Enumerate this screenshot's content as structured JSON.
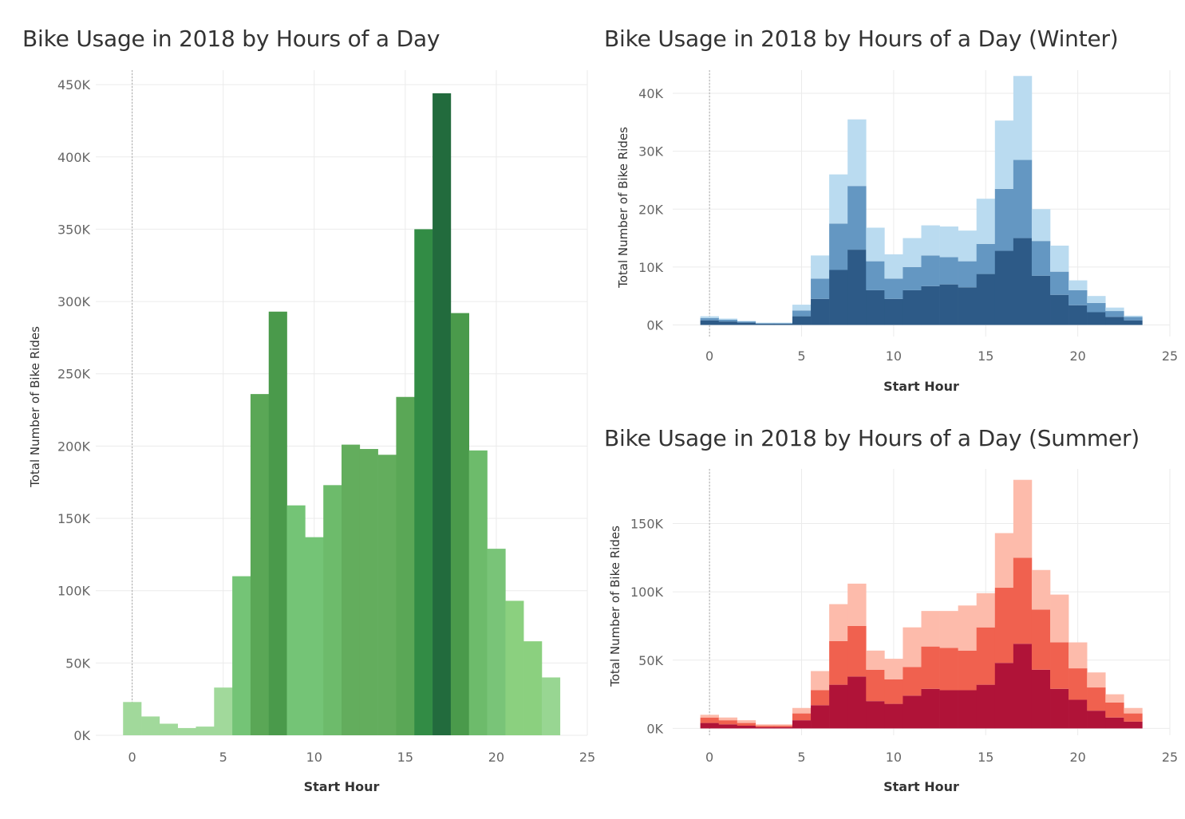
{
  "chart_data": [
    {
      "id": "total",
      "type": "bar",
      "title": "Bike Usage in 2018 by Hours of a Day",
      "xlabel": "Start Hour",
      "ylabel": "Total Number of Bike Rides",
      "xlim": [
        -2,
        25
      ],
      "ylim": [
        0,
        460000
      ],
      "xticks": [
        0,
        5,
        10,
        15,
        20,
        25
      ],
      "yticks": [
        0,
        50000,
        100000,
        150000,
        200000,
        250000,
        300000,
        350000,
        400000,
        450000
      ],
      "ytick_labels": [
        "0K",
        "50K",
        "100K",
        "150K",
        "200K",
        "250K",
        "300K",
        "350K",
        "400K",
        "450K"
      ],
      "categories": [
        0,
        1,
        2,
        3,
        4,
        5,
        6,
        7,
        8,
        9,
        10,
        11,
        12,
        13,
        14,
        15,
        16,
        17,
        18,
        19,
        20,
        21,
        22,
        23
      ],
      "values": [
        23000,
        13000,
        8000,
        5000,
        6000,
        33000,
        110000,
        236000,
        293000,
        159000,
        137000,
        173000,
        201000,
        198000,
        194000,
        234000,
        350000,
        444000,
        292000,
        197000,
        129000,
        93000,
        65000,
        40000
      ],
      "colors": [
        "#a1d99b",
        "#a1d99b",
        "#a1d99b",
        "#a1d99b",
        "#a1d99b",
        "#a1d99b",
        "#74c476",
        "#5aa756",
        "#4a9a4b",
        "#74c476",
        "#74c476",
        "#6dbb6b",
        "#63ad5d",
        "#63ad5d",
        "#63ad5d",
        "#5aa756",
        "#328c45",
        "#226b3d",
        "#4a9a4b",
        "#6dbb6b",
        "#79c478",
        "#8bd07f",
        "#8bd07f",
        "#98d692"
      ],
      "grid": true
    },
    {
      "id": "winter",
      "type": "bar",
      "stacked": true,
      "title": "Bike Usage in 2018 by Hours of a Day (Winter)",
      "xlabel": "Start Hour",
      "ylabel": "Total Number of Bike Rides",
      "xlim": [
        -2,
        25
      ],
      "ylim": [
        -2000,
        44000
      ],
      "xticks": [
        0,
        5,
        10,
        15,
        20,
        25
      ],
      "yticks": [
        0,
        10000,
        20000,
        30000,
        40000
      ],
      "ytick_labels": [
        "0K",
        "10K",
        "20K",
        "30K",
        "40K"
      ],
      "categories": [
        0,
        1,
        2,
        3,
        4,
        5,
        6,
        7,
        8,
        9,
        10,
        11,
        12,
        13,
        14,
        15,
        16,
        17,
        18,
        19,
        20,
        21,
        22,
        23
      ],
      "series": [
        {
          "color": "#2d5a87",
          "values": [
            800,
            600,
            400,
            200,
            200,
            1500,
            4500,
            9500,
            13000,
            6000,
            4500,
            6000,
            6700,
            7000,
            6500,
            8800,
            12800,
            15000,
            8500,
            5200,
            3400,
            2200,
            1400,
            800
          ]
        },
        {
          "color": "#6497c2",
          "values": [
            400,
            300,
            200,
            100,
            100,
            1000,
            3500,
            8000,
            11000,
            5000,
            3500,
            4000,
            5300,
            4700,
            4500,
            5200,
            10700,
            13500,
            6000,
            4000,
            2600,
            1600,
            1000,
            600
          ]
        },
        {
          "color": "#badbf0",
          "values": [
            300,
            200,
            100,
            100,
            100,
            1000,
            4000,
            8500,
            11500,
            5800,
            4200,
            5000,
            5200,
            5300,
            5300,
            7800,
            11800,
            14500,
            5500,
            4500,
            1700,
            1200,
            600,
            200
          ]
        }
      ],
      "grid": true
    },
    {
      "id": "summer",
      "type": "bar",
      "stacked": true,
      "title": "Bike Usage in 2018 by Hours of a Day (Summer)",
      "xlabel": "Start Hour",
      "ylabel": "Total Number of Bike Rides",
      "xlim": [
        -2,
        25
      ],
      "ylim": [
        -5000,
        190000
      ],
      "xticks": [
        0,
        5,
        10,
        15,
        20,
        25
      ],
      "yticks": [
        0,
        50000,
        100000,
        150000
      ],
      "ytick_labels": [
        "0K",
        "50K",
        "100K",
        "150K"
      ],
      "categories": [
        0,
        1,
        2,
        3,
        4,
        5,
        6,
        7,
        8,
        9,
        10,
        11,
        12,
        13,
        14,
        15,
        16,
        17,
        18,
        19,
        20,
        21,
        22,
        23
      ],
      "series": [
        {
          "color": "#b01338",
          "values": [
            4000,
            3000,
            2000,
            1000,
            1000,
            6000,
            17000,
            32000,
            38000,
            20000,
            18000,
            24000,
            29000,
            28000,
            28000,
            32000,
            48000,
            62000,
            43000,
            29000,
            21000,
            13000,
            8000,
            5000
          ]
        },
        {
          "color": "#f0614f",
          "values": [
            4000,
            3000,
            2000,
            1000,
            1000,
            5000,
            11000,
            32000,
            37000,
            23000,
            18000,
            21000,
            31000,
            31000,
            29000,
            42000,
            55000,
            63000,
            44000,
            34000,
            23000,
            17000,
            11000,
            6000
          ]
        },
        {
          "color": "#fdbbab",
          "values": [
            2000,
            2000,
            2000,
            1000,
            1000,
            4000,
            14000,
            27000,
            31000,
            14000,
            15000,
            29000,
            26000,
            27000,
            33000,
            25000,
            40000,
            57000,
            29000,
            35000,
            19000,
            11000,
            6000,
            4000
          ]
        }
      ],
      "grid": true
    }
  ]
}
